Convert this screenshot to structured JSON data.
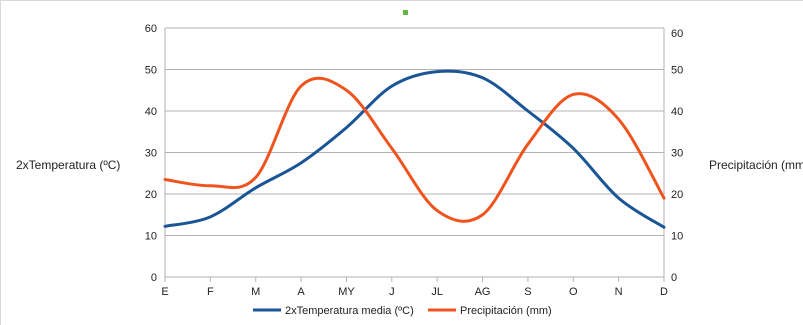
{
  "chart_data": {
    "type": "line",
    "categories": [
      "E",
      "F",
      "M",
      "A",
      "MY",
      "J",
      "JL",
      "AG",
      "S",
      "O",
      "N",
      "D"
    ],
    "series": [
      {
        "name": "2xTemperatura media (ºC)",
        "axis": "left",
        "color": "#1a5597",
        "values": [
          12.2,
          14.5,
          21.5,
          27.5,
          36,
          46,
          49.5,
          48,
          40,
          31,
          19,
          12
        ]
      },
      {
        "name": "Precipitación (mm)",
        "axis": "right",
        "color": "#f0541e",
        "values": [
          23.5,
          22,
          24,
          46,
          45,
          31,
          16,
          15,
          32,
          44,
          38,
          19
        ]
      }
    ],
    "ylabel": "2xTemperatura (ºC)",
    "y2label": "Precipitación (mm)",
    "ylim": [
      0,
      60
    ],
    "y2lim": [
      0,
      60
    ],
    "yticks": [
      "0",
      "10",
      "20",
      "30",
      "40",
      "50",
      "60"
    ],
    "y2ticks": [
      "0",
      "10",
      "20",
      "30",
      "40",
      "50",
      "60"
    ],
    "grid": true,
    "legend": "bottom"
  }
}
